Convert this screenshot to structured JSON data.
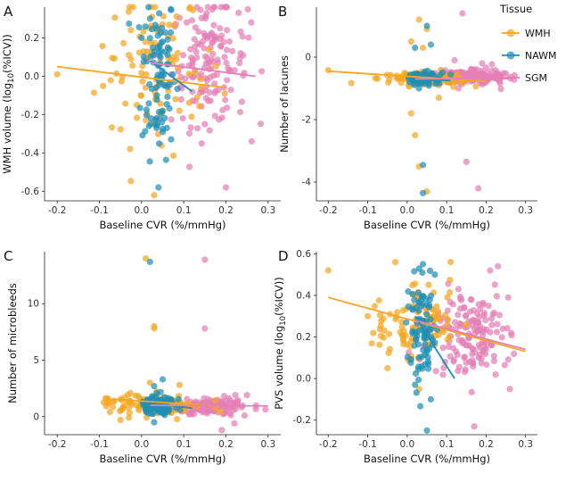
{
  "legend": {
    "title": "Tissue",
    "entries": [
      {
        "key": "WMH",
        "label": "WMH",
        "color": "#f5a623"
      },
      {
        "key": "NAWM",
        "label": "NAWM",
        "color": "#1f8fb5"
      },
      {
        "key": "SGM",
        "label": "SGM",
        "color": "#e57fb6"
      }
    ]
  },
  "chart_data": [
    {
      "panel": "A",
      "type": "scatter",
      "xlabel": "Baseline CVR (%/mmHg)",
      "ylabel_parts": [
        "WMH volume (log",
        "10",
        "(%ICV))"
      ],
      "xlim": [
        -0.23,
        0.33
      ],
      "ylim": [
        -0.65,
        0.36
      ],
      "xticks": [
        -0.2,
        -0.1,
        0.0,
        0.1,
        0.2,
        0.3
      ],
      "xtick_labels": [
        "-0.2",
        "-0.1",
        "0.0",
        "0.1",
        "0.2",
        "0.3"
      ],
      "yticks": [
        -0.6,
        -0.4,
        -0.2,
        0.0,
        0.2
      ],
      "ytick_labels": [
        "-0.6",
        "-0.4",
        "-0.2",
        "0.0",
        "0.2"
      ],
      "series": [
        {
          "name": "WMH",
          "centers": [
            [
              -0.01,
              0.03,
              0.05,
              0.22
            ],
            [
              0.04,
              0.03,
              0.05,
              0.22
            ],
            [
              0.07,
              0.0,
              0.06,
              0.16
            ]
          ],
          "extra_points": [
            [
              -0.2,
              0.01
            ],
            [
              0.03,
              -0.62
            ],
            [
              0.02,
              0.25
            ],
            [
              0.03,
              -0.25
            ],
            [
              0.09,
              -0.18
            ],
            [
              -0.03,
              0.11
            ],
            [
              0.05,
              0.27
            ]
          ],
          "fit": [
            [
              -0.2,
              0.05
            ],
            [
              0.2,
              -0.06
            ]
          ]
        },
        {
          "name": "NAWM",
          "centers": [
            [
              0.04,
              0.02,
              0.02,
              0.22
            ]
          ],
          "extra_points": [
            [
              0.02,
              0.3
            ],
            [
              0.04,
              -0.58
            ],
            [
              0.06,
              -0.27
            ],
            [
              0.07,
              -0.33
            ],
            [
              0.0,
              0.2
            ],
            [
              0.05,
              0.18
            ]
          ],
          "fit": [
            [
              0.02,
              0.08
            ],
            [
              0.12,
              -0.08
            ]
          ]
        },
        {
          "name": "SGM",
          "centers": [
            [
              0.16,
              0.07,
              0.045,
              0.16
            ]
          ],
          "extra_points": [
            [
              0.2,
              -0.58
            ],
            [
              0.23,
              0.33
            ],
            [
              0.15,
              -0.25
            ],
            [
              0.26,
              0.28
            ]
          ],
          "fit": [
            [
              0.02,
              0.07
            ],
            [
              0.27,
              0.0
            ]
          ]
        }
      ]
    },
    {
      "panel": "B",
      "type": "scatter",
      "xlabel": "Baseline CVR (%/mmHg)",
      "ylabel_parts": [
        "Number of lacunes"
      ],
      "xlim": [
        -0.23,
        0.33
      ],
      "ylim": [
        -4.6,
        1.6
      ],
      "xticks": [
        -0.2,
        -0.1,
        0.0,
        0.1,
        0.2,
        0.3
      ],
      "xtick_labels": [
        "-0.2",
        "-0.1",
        "0.0",
        "0.1",
        "0.2",
        "0.3"
      ],
      "yticks": [
        -4,
        -2,
        0
      ],
      "ytick_labels": [
        "-4",
        "-2",
        "0"
      ],
      "series": [
        {
          "name": "WMH",
          "centers": [
            [
              0.02,
              -0.65,
              0.05,
              0.1
            ],
            [
              0.06,
              -0.7,
              0.05,
              0.1
            ]
          ],
          "extra_points": [
            [
              -0.2,
              -0.42
            ],
            [
              0.05,
              -4.3
            ],
            [
              0.03,
              -3.5
            ],
            [
              0.03,
              1.2
            ],
            [
              0.01,
              0.5
            ],
            [
              0.05,
              0.9
            ],
            [
              0.08,
              -1.3
            ],
            [
              0.01,
              -1.8
            ],
            [
              0.02,
              -2.5
            ],
            [
              0.04,
              0.3
            ]
          ],
          "fit": [
            [
              -0.2,
              -0.45
            ],
            [
              0.2,
              -0.78
            ]
          ]
        },
        {
          "name": "NAWM",
          "centers": [
            [
              0.04,
              -0.68,
              0.02,
              0.1
            ]
          ],
          "extra_points": [
            [
              0.04,
              -4.35
            ],
            [
              0.04,
              -3.45
            ],
            [
              0.05,
              1.0
            ],
            [
              0.02,
              0.3
            ],
            [
              0.06,
              0.4
            ],
            [
              0.03,
              -1.0
            ]
          ],
          "fit": [
            [
              0.02,
              -0.7
            ],
            [
              0.11,
              -0.75
            ]
          ]
        },
        {
          "name": "SGM",
          "centers": [
            [
              0.16,
              -0.62,
              0.045,
              0.12
            ]
          ],
          "extra_points": [
            [
              0.15,
              -3.35
            ],
            [
              0.18,
              -4.2
            ],
            [
              0.14,
              1.4
            ],
            [
              0.12,
              -0.1
            ],
            [
              0.19,
              -0.2
            ],
            [
              0.13,
              -1.0
            ]
          ],
          "fit": [
            [
              0.02,
              -0.7
            ],
            [
              0.27,
              -0.68
            ]
          ]
        }
      ]
    },
    {
      "panel": "C",
      "type": "scatter",
      "xlabel": "Baseline CVR (%/mmHg)",
      "ylabel_parts": [
        "Number of microbleeds"
      ],
      "xlim": [
        -0.23,
        0.33
      ],
      "ylim": [
        -1.6,
        14.6
      ],
      "xticks": [
        -0.2,
        -0.1,
        0.0,
        0.1,
        0.2,
        0.3
      ],
      "xtick_labels": [
        "-0.2",
        "-0.1",
        "0.0",
        "0.1",
        "0.2",
        "0.3"
      ],
      "yticks": [
        0,
        5,
        10
      ],
      "ytick_labels": [
        "0",
        "5",
        "10"
      ],
      "series": [
        {
          "name": "WMH",
          "centers": [
            [
              -0.01,
              1.1,
              0.045,
              0.45
            ],
            [
              0.05,
              1.1,
              0.05,
              0.5
            ]
          ],
          "extra_points": [
            [
              -0.05,
              -0.3
            ],
            [
              0.01,
              14.0
            ],
            [
              0.03,
              8.0
            ],
            [
              0.03,
              7.8
            ],
            [
              -0.08,
              1.6
            ],
            [
              0.02,
              3.0
            ],
            [
              0.09,
              2.8
            ]
          ],
          "fit": [
            [
              -0.07,
              1.55
            ],
            [
              0.17,
              0.95
            ]
          ]
        },
        {
          "name": "NAWM",
          "centers": [
            [
              0.04,
              1.0,
              0.02,
              0.45
            ]
          ],
          "extra_points": [
            [
              0.02,
              13.7
            ],
            [
              0.05,
              3.3
            ],
            [
              0.03,
              2.7
            ],
            [
              0.03,
              -0.5
            ]
          ],
          "fit": [
            [
              0.02,
              1.2
            ],
            [
              0.12,
              0.75
            ]
          ]
        },
        {
          "name": "SGM",
          "centers": [
            [
              0.16,
              0.9,
              0.045,
              0.4
            ]
          ],
          "extra_points": [
            [
              0.15,
              7.8
            ],
            [
              0.15,
              13.9
            ],
            [
              0.19,
              -1.2
            ],
            [
              0.25,
              1.9
            ],
            [
              0.22,
              -0.6
            ]
          ],
          "fit": [
            [
              0.02,
              1.0
            ],
            [
              0.3,
              0.95
            ]
          ]
        }
      ]
    },
    {
      "panel": "D",
      "type": "scatter",
      "xlabel": "Baseline CVR (%/mmHg)",
      "ylabel_parts": [
        "PVS volume (log",
        "10",
        "(%ICV))"
      ],
      "xlim": [
        -0.23,
        0.33
      ],
      "ylim": [
        -0.27,
        0.61
      ],
      "xticks": [
        -0.2,
        -0.1,
        0.0,
        0.1,
        0.2,
        0.3
      ],
      "xtick_labels": [
        "-0.2",
        "-0.1",
        "0.0",
        "0.1",
        "0.2",
        "0.3"
      ],
      "yticks": [
        -0.2,
        0.0,
        0.2,
        0.4,
        0.6
      ],
      "ytick_labels": [
        "-0.2",
        "0.0",
        "0.2",
        "0.4",
        "0.6"
      ],
      "series": [
        {
          "name": "WMH",
          "centers": [
            [
              0.0,
              0.25,
              0.05,
              0.08
            ],
            [
              0.05,
              0.28,
              0.04,
              0.08
            ]
          ],
          "extra_points": [
            [
              -0.2,
              0.52
            ],
            [
              -0.03,
              0.56
            ],
            [
              0.11,
              0.56
            ],
            [
              -0.05,
              0.05
            ],
            [
              0.03,
              -0.05
            ],
            [
              -0.1,
              0.3
            ]
          ],
          "fit": [
            [
              -0.2,
              0.39
            ],
            [
              0.3,
              0.13
            ]
          ]
        },
        {
          "name": "NAWM",
          "centers": [
            [
              0.04,
              0.22,
              0.02,
              0.12
            ]
          ],
          "extra_points": [
            [
              0.05,
              -0.25
            ],
            [
              0.06,
              -0.1
            ],
            [
              0.02,
              -0.03
            ],
            [
              0.04,
              0.55
            ],
            [
              0.07,
              0.5
            ]
          ],
          "fit": [
            [
              0.02,
              0.3
            ],
            [
              0.12,
              0.0
            ]
          ]
        },
        {
          "name": "SGM",
          "centers": [
            [
              0.16,
              0.22,
              0.05,
              0.1
            ]
          ],
          "extra_points": [
            [
              0.17,
              -0.23
            ],
            [
              0.23,
              0.54
            ],
            [
              0.21,
              0.52
            ],
            [
              0.26,
              -0.05
            ],
            [
              0.13,
              0.43
            ]
          ],
          "fit": [
            [
              0.02,
              0.28
            ],
            [
              0.3,
              0.14
            ]
          ]
        }
      ]
    }
  ]
}
